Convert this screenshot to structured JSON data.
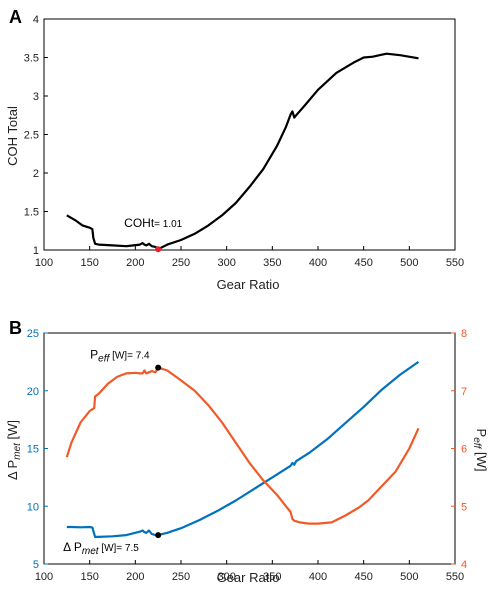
{
  "chart_data": [
    {
      "panel_label": "A",
      "type": "line",
      "xlabel": "Gear Ratio",
      "ylabel": "COH Total",
      "xlim": [
        100,
        550
      ],
      "ylim": [
        1,
        4
      ],
      "xticks": [
        "100",
        "150",
        "200",
        "250",
        "300",
        "350",
        "400",
        "450",
        "500",
        "550"
      ],
      "yticks": [
        "1",
        "1.5",
        "2",
        "2.5",
        "3",
        "3.5",
        "4"
      ],
      "grid": false,
      "colors": {
        "line": "#000000",
        "marker": "#e8202a"
      },
      "series": [
        {
          "x": [
            125,
            135,
            142,
            150,
            153,
            154,
            156,
            160,
            175,
            190,
            205,
            208,
            210,
            212,
            215,
            218,
            222,
            225,
            235,
            250,
            265,
            280,
            295,
            310,
            325,
            340,
            355,
            365,
            370,
            372,
            374,
            376,
            385,
            400,
            420,
            440,
            450,
            460,
            475,
            490,
            510
          ],
          "y": [
            1.45,
            1.38,
            1.32,
            1.29,
            1.27,
            1.16,
            1.08,
            1.07,
            1.06,
            1.05,
            1.07,
            1.09,
            1.07,
            1.06,
            1.08,
            1.05,
            1.04,
            1.01,
            1.07,
            1.13,
            1.21,
            1.32,
            1.45,
            1.61,
            1.82,
            2.05,
            2.35,
            2.6,
            2.76,
            2.8,
            2.72,
            2.75,
            2.87,
            3.08,
            3.3,
            3.44,
            3.5,
            3.51,
            3.55,
            3.53,
            3.49
          ]
        }
      ],
      "annotation": {
        "prefix": "COHt",
        "value_text": "= 1.01",
        "x": 225,
        "y": 1.01
      }
    },
    {
      "panel_label": "B",
      "type": "line",
      "xlabel": "Gear Ratio",
      "xlim": [
        100,
        550
      ],
      "xticks": [
        "100",
        "150",
        "200",
        "250",
        "300",
        "350",
        "400",
        "450",
        "500",
        "550"
      ],
      "grid": false,
      "left_axis": {
        "label_prefix": "Δ P",
        "label_sub": "met",
        "label_suffix": " [W]",
        "ylim": [
          5,
          25
        ],
        "ticks": [
          "5",
          "10",
          "15",
          "20",
          "25"
        ],
        "color": "#0072bd"
      },
      "right_axis": {
        "label_prefix": "P",
        "label_sub": "eff",
        "label_suffix": " [W]",
        "ylim": [
          4,
          8
        ],
        "ticks": [
          "4",
          "5",
          "6",
          "7",
          "8"
        ],
        "color": "#f05a28"
      },
      "series": [
        {
          "axis": "left",
          "color": "#0072bd",
          "x": [
            125,
            130,
            140,
            150,
            153,
            156,
            160,
            175,
            190,
            200,
            205,
            208,
            210,
            212,
            215,
            218,
            222,
            225,
            235,
            250,
            270,
            290,
            310,
            330,
            350,
            370,
            372,
            374,
            376,
            390,
            410,
            430,
            450,
            470,
            490,
            510
          ],
          "y": [
            8.2,
            8.2,
            8.18,
            8.2,
            8.15,
            7.35,
            7.35,
            7.4,
            7.5,
            7.7,
            7.8,
            7.9,
            7.75,
            7.7,
            7.9,
            7.6,
            7.5,
            7.5,
            7.7,
            8.1,
            8.8,
            9.6,
            10.5,
            11.5,
            12.5,
            13.5,
            13.75,
            13.6,
            13.9,
            14.6,
            15.8,
            17.2,
            18.6,
            20.1,
            21.4,
            22.5
          ]
        },
        {
          "axis": "right",
          "color": "#f05a28",
          "x": [
            125,
            130,
            140,
            150,
            155,
            156,
            160,
            170,
            180,
            190,
            200,
            205,
            208,
            210,
            212,
            215,
            218,
            222,
            225,
            235,
            250,
            265,
            280,
            295,
            310,
            325,
            340,
            355,
            365,
            370,
            372,
            374,
            380,
            390,
            400,
            415,
            430,
            445,
            455,
            470,
            485,
            500,
            510
          ],
          "y": [
            5.85,
            6.1,
            6.45,
            6.65,
            6.7,
            6.9,
            6.95,
            7.12,
            7.24,
            7.3,
            7.31,
            7.3,
            7.3,
            7.35,
            7.3,
            7.32,
            7.34,
            7.32,
            7.4,
            7.35,
            7.18,
            7.0,
            6.75,
            6.45,
            6.1,
            5.75,
            5.45,
            5.2,
            5.0,
            4.9,
            4.78,
            4.75,
            4.72,
            4.7,
            4.7,
            4.72,
            4.84,
            4.98,
            5.1,
            5.35,
            5.6,
            6.0,
            6.35
          ]
        }
      ],
      "annotations": [
        {
          "axis": "right",
          "prefix": "P",
          "sub": "eff",
          "value_text": " [W]= 7.4",
          "x": 225,
          "y": 7.4
        },
        {
          "axis": "left",
          "prefix": "Δ P",
          "sub": "met",
          "value_text": " [W]= 7.5",
          "x": 225,
          "y": 7.5
        }
      ]
    }
  ]
}
